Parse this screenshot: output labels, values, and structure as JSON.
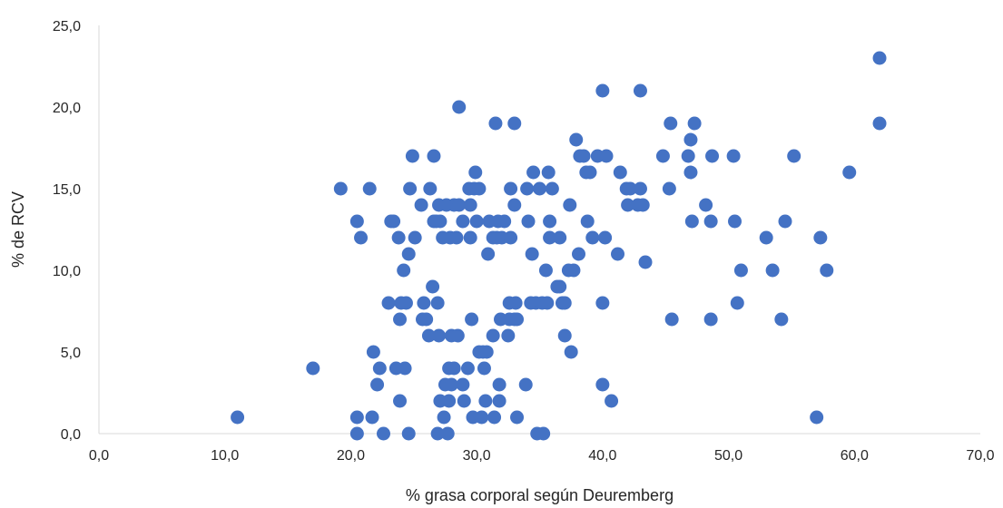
{
  "chart_data": {
    "type": "scatter",
    "xlabel": "% grasa corporal según Deuremberg",
    "ylabel": "% de RCV",
    "xlim": [
      0,
      70
    ],
    "ylim": [
      0,
      25
    ],
    "xticks": [
      "0,0",
      "10,0",
      "20,0",
      "30,0",
      "40,0",
      "50,0",
      "60,0",
      "70,0"
    ],
    "yticks": [
      "0,0",
      "5,0",
      "10,0",
      "15,0",
      "20,0",
      "25,0"
    ],
    "grid": false,
    "colors": {
      "marker": "#4472C4",
      "axis": "#D9D9D9",
      "text": "#262626"
    },
    "points": [
      [
        11.0,
        1
      ],
      [
        17.0,
        4
      ],
      [
        19.2,
        15
      ],
      [
        20.5,
        13
      ],
      [
        20.8,
        12
      ],
      [
        20.5,
        1
      ],
      [
        20.5,
        0
      ],
      [
        21.5,
        15
      ],
      [
        21.7,
        1
      ],
      [
        21.8,
        5
      ],
      [
        22.1,
        3
      ],
      [
        22.3,
        4
      ],
      [
        22.6,
        0
      ],
      [
        23.0,
        8
      ],
      [
        23.2,
        13
      ],
      [
        23.4,
        13
      ],
      [
        23.6,
        4
      ],
      [
        23.8,
        12
      ],
      [
        23.9,
        2
      ],
      [
        23.9,
        7
      ],
      [
        24.0,
        8
      ],
      [
        24.2,
        10
      ],
      [
        24.3,
        4
      ],
      [
        24.4,
        8
      ],
      [
        24.6,
        0
      ],
      [
        24.6,
        11
      ],
      [
        24.7,
        15
      ],
      [
        24.9,
        17
      ],
      [
        25.1,
        12
      ],
      [
        25.6,
        14
      ],
      [
        25.7,
        7
      ],
      [
        25.8,
        8
      ],
      [
        26.0,
        7
      ],
      [
        26.2,
        6
      ],
      [
        26.3,
        15
      ],
      [
        26.5,
        9
      ],
      [
        26.6,
        17
      ],
      [
        26.6,
        13
      ],
      [
        26.8,
        13
      ],
      [
        26.9,
        8
      ],
      [
        26.9,
        0
      ],
      [
        27.0,
        6
      ],
      [
        27.0,
        14
      ],
      [
        27.1,
        2
      ],
      [
        27.1,
        13
      ],
      [
        27.3,
        12
      ],
      [
        27.4,
        1
      ],
      [
        27.5,
        3
      ],
      [
        27.6,
        14
      ],
      [
        27.7,
        0
      ],
      [
        27.8,
        4
      ],
      [
        27.8,
        2
      ],
      [
        27.9,
        12
      ],
      [
        28.0,
        6
      ],
      [
        28.0,
        3
      ],
      [
        28.2,
        14
      ],
      [
        28.2,
        4
      ],
      [
        28.4,
        12
      ],
      [
        28.5,
        6
      ],
      [
        28.6,
        14
      ],
      [
        28.6,
        20
      ],
      [
        28.9,
        3
      ],
      [
        28.9,
        13
      ],
      [
        29.0,
        2
      ],
      [
        29.3,
        4
      ],
      [
        29.4,
        15
      ],
      [
        29.5,
        14
      ],
      [
        29.5,
        12
      ],
      [
        29.6,
        7
      ],
      [
        29.7,
        1
      ],
      [
        29.8,
        15
      ],
      [
        29.9,
        16
      ],
      [
        30.0,
        13
      ],
      [
        30.2,
        15
      ],
      [
        30.2,
        5
      ],
      [
        30.4,
        1
      ],
      [
        30.5,
        5
      ],
      [
        30.6,
        4
      ],
      [
        30.7,
        2
      ],
      [
        30.8,
        5
      ],
      [
        30.9,
        11
      ],
      [
        31.0,
        13
      ],
      [
        31.3,
        12
      ],
      [
        31.3,
        6
      ],
      [
        31.4,
        1
      ],
      [
        31.5,
        19
      ],
      [
        31.6,
        12
      ],
      [
        31.7,
        13
      ],
      [
        31.8,
        3
      ],
      [
        31.8,
        2
      ],
      [
        31.9,
        7
      ],
      [
        32.0,
        12
      ],
      [
        32.2,
        13
      ],
      [
        32.5,
        6
      ],
      [
        32.6,
        8
      ],
      [
        32.6,
        7
      ],
      [
        32.7,
        15
      ],
      [
        32.7,
        12
      ],
      [
        33.0,
        14
      ],
      [
        33.0,
        7
      ],
      [
        33.0,
        19
      ],
      [
        33.1,
        8
      ],
      [
        33.2,
        1
      ],
      [
        33.2,
        7
      ],
      [
        33.9,
        3
      ],
      [
        34.0,
        15
      ],
      [
        34.1,
        13
      ],
      [
        34.3,
        8
      ],
      [
        34.4,
        11
      ],
      [
        34.5,
        16
      ],
      [
        34.7,
        8
      ],
      [
        34.8,
        0
      ],
      [
        35.0,
        15
      ],
      [
        35.2,
        8
      ],
      [
        35.3,
        0
      ],
      [
        35.5,
        10
      ],
      [
        35.6,
        8
      ],
      [
        35.7,
        16
      ],
      [
        35.8,
        13
      ],
      [
        35.8,
        12
      ],
      [
        36.0,
        15
      ],
      [
        36.4,
        9
      ],
      [
        36.6,
        12
      ],
      [
        36.6,
        9
      ],
      [
        36.8,
        8
      ],
      [
        37.0,
        6
      ],
      [
        37.0,
        8
      ],
      [
        37.3,
        10
      ],
      [
        37.4,
        14
      ],
      [
        37.5,
        5
      ],
      [
        37.7,
        10
      ],
      [
        37.9,
        18
      ],
      [
        38.1,
        11
      ],
      [
        38.2,
        17
      ],
      [
        38.5,
        17
      ],
      [
        38.7,
        16
      ],
      [
        38.8,
        13
      ],
      [
        39.0,
        16
      ],
      [
        39.2,
        12
      ],
      [
        39.6,
        17
      ],
      [
        40.0,
        8
      ],
      [
        40.0,
        21
      ],
      [
        40.0,
        3
      ],
      [
        40.2,
        12
      ],
      [
        40.3,
        17
      ],
      [
        40.7,
        2
      ],
      [
        41.2,
        11
      ],
      [
        41.4,
        16
      ],
      [
        41.9,
        15
      ],
      [
        42.0,
        14
      ],
      [
        42.2,
        15
      ],
      [
        42.8,
        14
      ],
      [
        43.0,
        21
      ],
      [
        43.0,
        15
      ],
      [
        43.2,
        14
      ],
      [
        43.4,
        10.5
      ],
      [
        44.8,
        17
      ],
      [
        45.3,
        15
      ],
      [
        45.4,
        19
      ],
      [
        45.5,
        7
      ],
      [
        46.8,
        17
      ],
      [
        47.0,
        18
      ],
      [
        47.0,
        16
      ],
      [
        47.1,
        13
      ],
      [
        47.3,
        19
      ],
      [
        48.2,
        14
      ],
      [
        48.6,
        13
      ],
      [
        48.6,
        7
      ],
      [
        48.7,
        17
      ],
      [
        50.4,
        17
      ],
      [
        50.5,
        13
      ],
      [
        50.7,
        8
      ],
      [
        51.0,
        10
      ],
      [
        53.0,
        12
      ],
      [
        53.5,
        10
      ],
      [
        54.2,
        7
      ],
      [
        54.5,
        13
      ],
      [
        55.2,
        17
      ],
      [
        57.0,
        1
      ],
      [
        57.3,
        12
      ],
      [
        57.8,
        10
      ],
      [
        59.6,
        16
      ],
      [
        62.0,
        19
      ],
      [
        62.0,
        23
      ]
    ]
  }
}
